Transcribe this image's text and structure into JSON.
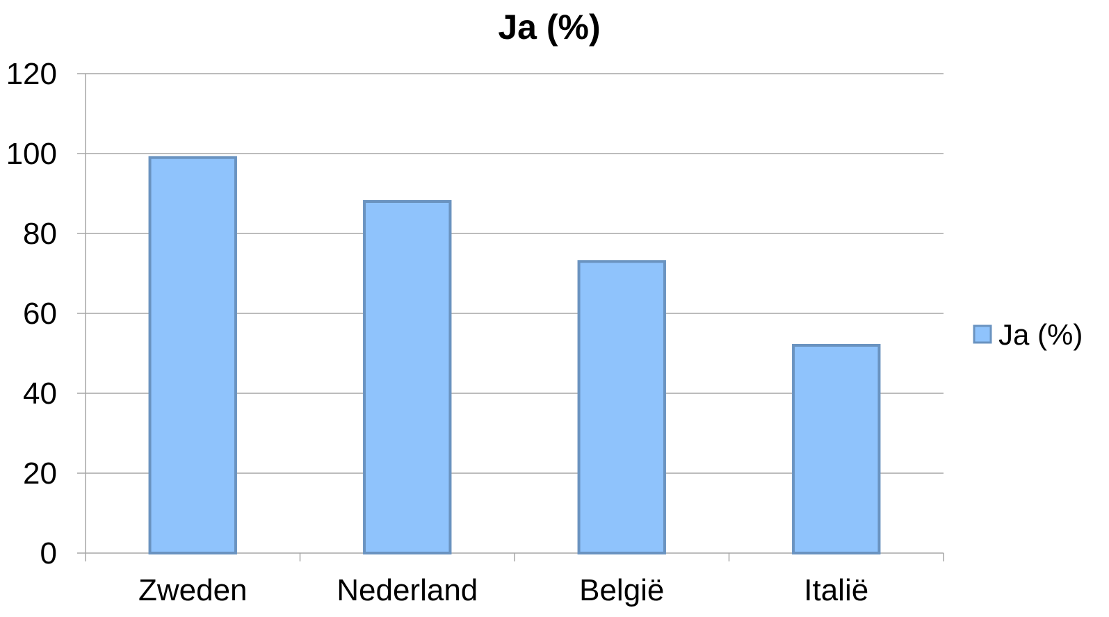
{
  "chart_data": {
    "type": "bar",
    "title": "Ja (%)",
    "xlabel": "",
    "ylabel": "",
    "categories": [
      "Zweden",
      "Nederland",
      "België",
      "Italië"
    ],
    "series": [
      {
        "name": "Ja (%)",
        "values": [
          99,
          88,
          73,
          52
        ]
      }
    ],
    "ylim": [
      0,
      120
    ],
    "yticks": [
      0,
      20,
      40,
      60,
      80,
      100,
      120
    ],
    "ytick_labels": [
      "0",
      "20",
      "40",
      "60",
      "80",
      "100",
      "120"
    ],
    "grid": true,
    "legend": "right",
    "colors": {
      "bar_fill": "#8fc3fc",
      "bar_stroke": "#6a93c0",
      "grid": "#a6a6a6",
      "axis": "#a6a6a6"
    }
  }
}
